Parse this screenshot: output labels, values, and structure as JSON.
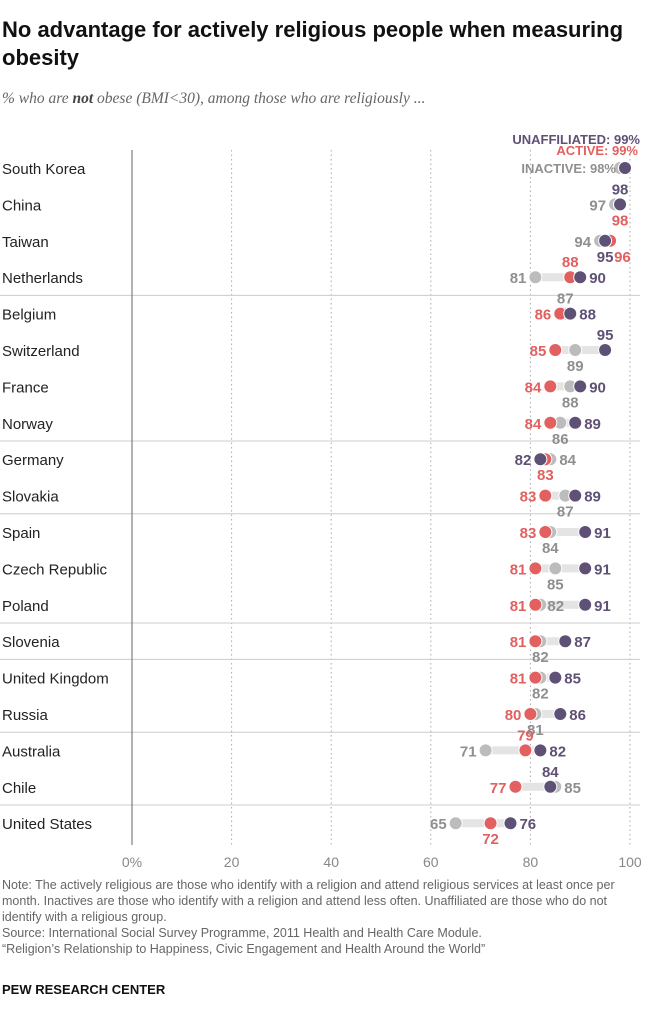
{
  "title": "No advantage for actively religious people when measuring obesity",
  "subtitle_pre": "% who are ",
  "subtitle_em": "not",
  "subtitle_post": " obese (BMI<30), among those who are religiously ...",
  "chart_data": {
    "type": "dot",
    "xlim": [
      0,
      100
    ],
    "xticks": [
      0,
      20,
      40,
      60,
      80,
      100
    ],
    "xtick_labels": [
      "0%",
      "20",
      "40",
      "60",
      "80",
      "100"
    ],
    "grid": "vertical dotted",
    "legend": "direct labels on first row (top-right)",
    "legend_labels": {
      "unaffiliated": "UNAFFILIATED: 99%",
      "active": "ACTIVE: 99%",
      "inactive": "INACTIVE: 98%"
    },
    "colors": {
      "unaffiliated": "#5f5176",
      "active": "#e2605f",
      "inactive": "#bcbcbc"
    },
    "categories": [
      "South Korea",
      "China",
      "Taiwan",
      "Netherlands",
      "Belgium",
      "Switzerland",
      "France",
      "Norway",
      "Germany",
      "Slovakia",
      "Spain",
      "Czech Republic",
      "Poland",
      "Slovenia",
      "United Kingdom",
      "Russia",
      "Australia",
      "Chile",
      "United States"
    ],
    "series": [
      {
        "name": "Unaffiliated",
        "key": "unaffiliated",
        "values": [
          99,
          98,
          95,
          90,
          88,
          95,
          90,
          89,
          82,
          89,
          91,
          91,
          91,
          87,
          85,
          86,
          82,
          84,
          76
        ]
      },
      {
        "name": "Active",
        "key": "active",
        "values": [
          99,
          98,
          96,
          88,
          86,
          85,
          84,
          84,
          83,
          83,
          83,
          81,
          81,
          81,
          81,
          80,
          79,
          77,
          72
        ]
      },
      {
        "name": "Inactive",
        "key": "inactive",
        "values": [
          98,
          97,
          94,
          81,
          87,
          89,
          88,
          86,
          84,
          87,
          84,
          85,
          82,
          82,
          82,
          81,
          71,
          85,
          65
        ]
      }
    ]
  },
  "note": "Note: The actively religious are those who identify with a religion and attend religious services at least once per month. Inactives are those who identify with a religion and attend less often. Unaffiliated are those who do not identify with a religious group.",
  "source": "Source: International Social Survey Programme, 2011 Health and Health Care Module.",
  "report": "“Religion’s Relationship to Happiness, Civic Engagement and Health Around the World”",
  "brand": "PEW RESEARCH CENTER"
}
